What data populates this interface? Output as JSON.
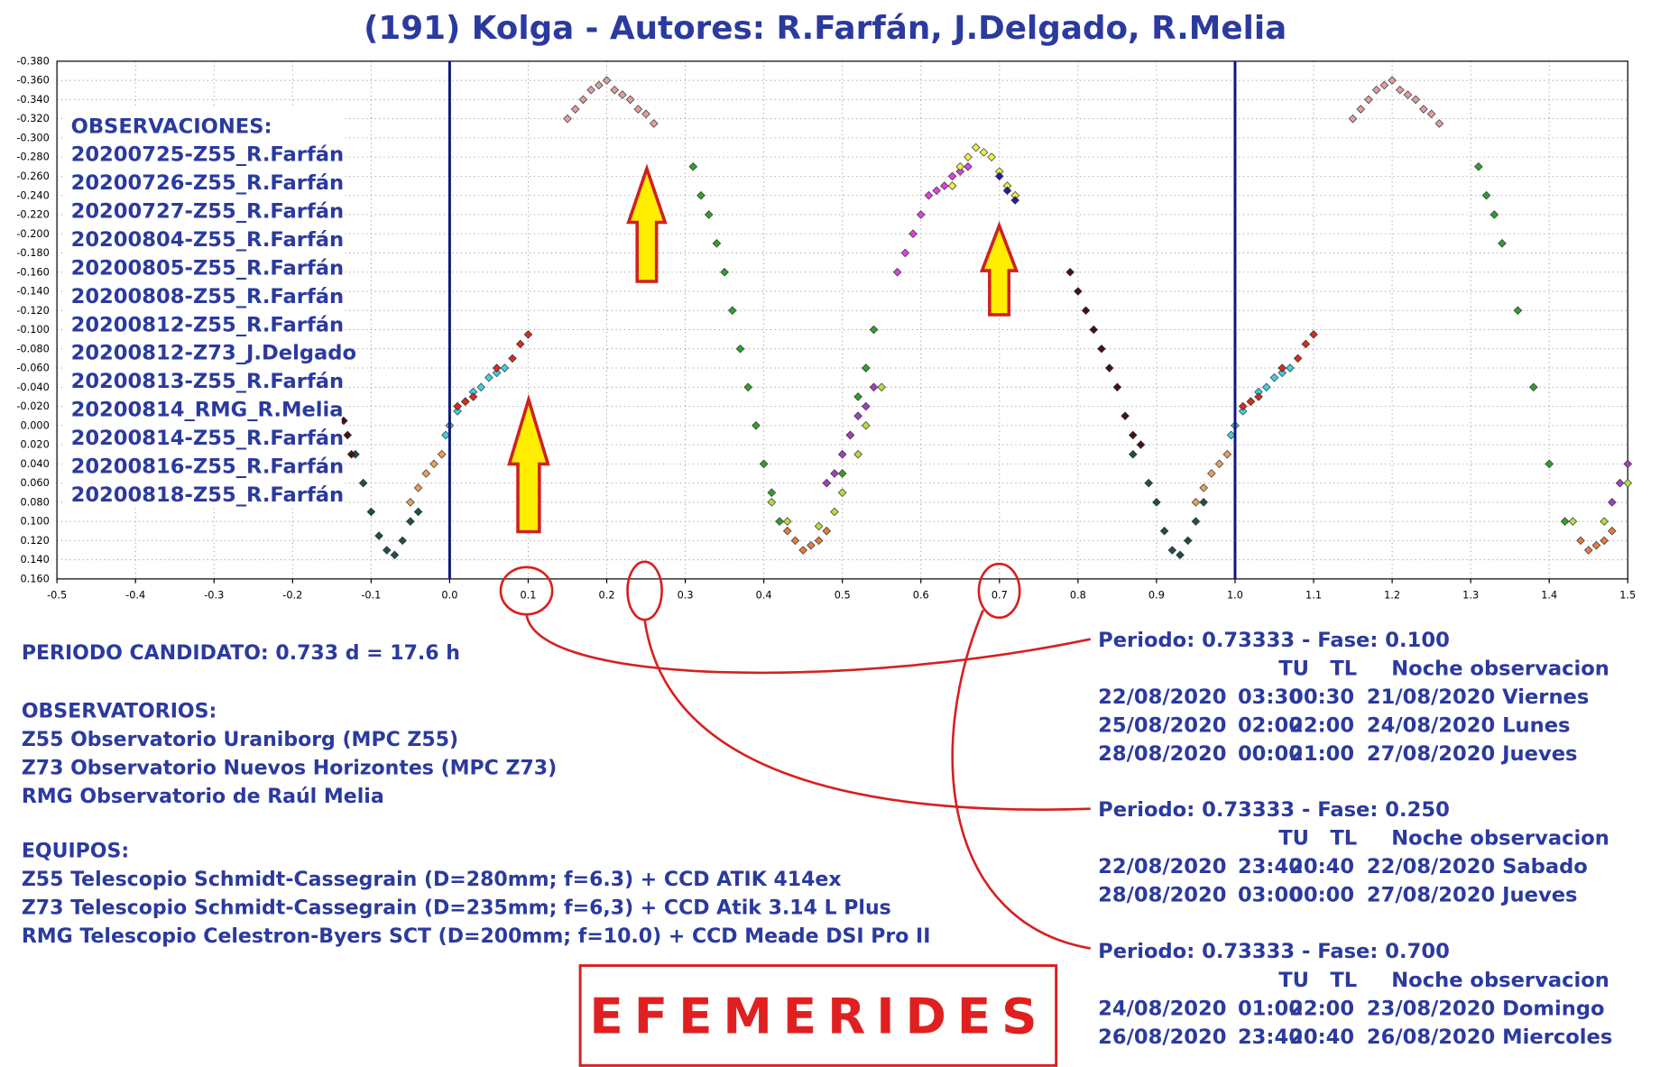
{
  "chart_data": {
    "type": "scatter",
    "title": "(191) Kolga - Autores: R.Farfán, J.Delgado, R.Melia",
    "legend_title": "OBSERVACIONES:",
    "legend_items": [
      "20200725-Z55_R.Farfán",
      "20200726-Z55_R.Farfán",
      "20200727-Z55_R.Farfán",
      "20200804-Z55_R.Farfán",
      "20200805-Z55_R.Farfán",
      "20200808-Z55_R.Farfán",
      "20200812-Z55_R.Farfán",
      "20200812-Z73_J.Delgado",
      "20200813-Z55_R.Farfán",
      "20200814_RMG_R.Melia",
      "20200814-Z55_R.Farfán",
      "20200816-Z55_R.Farfán",
      "20200818-Z55_R.Farfán"
    ],
    "xlim": [
      -0.5,
      1.5
    ],
    "ylim": [
      0.16,
      -0.38
    ],
    "xticks": [
      -0.5,
      -0.4,
      -0.3,
      -0.2,
      -0.1,
      {
        "value": 0,
        "label": "0.0"
      },
      0.1,
      0.2,
      0.3,
      0.4,
      0.5,
      0.6,
      0.7,
      0.8,
      0.9,
      {
        "value": 1,
        "label": "1.0"
      },
      1.1,
      1.2,
      1.3,
      1.4,
      1.5
    ],
    "yticks": [
      {
        "value": -0.38,
        "label": "-0.380"
      },
      {
        "value": -0.36,
        "label": "-0.360"
      },
      {
        "value": -0.34,
        "label": "-0.340"
      },
      {
        "value": -0.32,
        "label": "-0.320"
      },
      {
        "value": -0.3,
        "label": "-0.300"
      },
      {
        "value": -0.28,
        "label": "-0.280"
      },
      {
        "value": -0.26,
        "label": "-0.260"
      },
      {
        "value": -0.24,
        "label": "-0.240"
      },
      {
        "value": -0.22,
        "label": "-0.220"
      },
      {
        "value": -0.2,
        "label": "-0.200"
      },
      {
        "value": -0.18,
        "label": "-0.180"
      },
      {
        "value": -0.16,
        "label": "-0.160"
      },
      {
        "value": -0.14,
        "label": "-0.140"
      },
      {
        "value": -0.12,
        "label": "-0.120"
      },
      {
        "value": -0.1,
        "label": "-0.100"
      },
      {
        "value": -0.08,
        "label": "-0.080"
      },
      {
        "value": -0.06,
        "label": "-0.060"
      },
      {
        "value": -0.04,
        "label": "-0.040"
      },
      {
        "value": -0.02,
        "label": "-0.020"
      },
      {
        "value": 0,
        "label": "0.000"
      },
      {
        "value": 0.02,
        "label": "0.020"
      },
      {
        "value": 0.04,
        "label": "0.040"
      },
      {
        "value": 0.06,
        "label": "0.060"
      },
      {
        "value": 0.08,
        "label": "0.080"
      },
      {
        "value": 0.1,
        "label": "0.100"
      },
      {
        "value": 0.12,
        "label": "0.120"
      },
      {
        "value": 0.14,
        "label": "0.140"
      },
      {
        "value": 0.16,
        "label": "0.160"
      }
    ],
    "grid": true,
    "reference_lines_x": [
      0,
      1
    ],
    "reference_line_color": "#0d1a7a",
    "series": [
      {
        "color": "#1f4f4f",
        "x": [
          -0.12,
          -0.11,
          -0.1,
          -0.09,
          -0.08,
          -0.07,
          -0.06,
          -0.05,
          -0.04,
          0.87,
          0.89,
          0.9,
          0.91,
          0.92,
          0.93,
          0.94,
          0.95,
          0.96
        ],
        "values": [
          0.03,
          0.06,
          0.09,
          0.115,
          0.13,
          0.135,
          0.12,
          0.1,
          0.09,
          0.03,
          0.06,
          0.08,
          0.11,
          0.13,
          0.135,
          0.12,
          0.1,
          0.08
        ]
      },
      {
        "color": "#4a1010",
        "x": [
          -0.135,
          -0.13,
          -0.125,
          0.79,
          0.8,
          0.81,
          0.82,
          0.83,
          0.84,
          0.85,
          0.86,
          0.87,
          0.88
        ],
        "values": [
          -0.005,
          0.01,
          0.03,
          -0.16,
          -0.14,
          -0.12,
          -0.1,
          -0.08,
          -0.06,
          -0.04,
          -0.01,
          0.01,
          0.02
        ]
      },
      {
        "color": "#e8a060",
        "x": [
          -0.05,
          -0.04,
          -0.03,
          -0.02,
          -0.01,
          0.95,
          0.96,
          0.97,
          0.98,
          0.99
        ],
        "values": [
          0.08,
          0.065,
          0.05,
          0.04,
          0.03,
          0.08,
          0.065,
          0.05,
          0.04,
          0.03
        ]
      },
      {
        "color": "#40d0e0",
        "x": [
          -0.005,
          0,
          0.01,
          0.02,
          0.03,
          0.04,
          0.05,
          0.06,
          0.07,
          0.995,
          1,
          1.01,
          1.02,
          1.03,
          1.04,
          1.05,
          1.06,
          1.07
        ],
        "values": [
          0.01,
          0,
          -0.015,
          -0.025,
          -0.035,
          -0.04,
          -0.05,
          -0.055,
          -0.06,
          0.01,
          0,
          -0.015,
          -0.025,
          -0.035,
          -0.04,
          -0.05,
          -0.055,
          -0.06
        ]
      },
      {
        "color": "#d03020",
        "x": [
          0.01,
          0.02,
          0.03,
          0.06,
          0.08,
          0.09,
          0.1,
          1.01,
          1.02,
          1.03,
          1.06,
          1.08,
          1.09,
          1.1
        ],
        "values": [
          -0.02,
          -0.025,
          -0.03,
          -0.06,
          -0.07,
          -0.085,
          -0.095,
          -0.02,
          -0.025,
          -0.03,
          -0.06,
          -0.07,
          -0.085,
          -0.095
        ]
      },
      {
        "color": "#e0a0a0",
        "x": [
          0.15,
          0.16,
          0.17,
          0.18,
          0.19,
          0.2,
          0.21,
          0.22,
          0.23,
          0.24,
          0.25,
          0.26,
          1.15,
          1.16,
          1.17,
          1.18,
          1.19,
          1.2,
          1.21,
          1.22,
          1.23,
          1.24,
          1.25,
          1.26
        ],
        "values": [
          -0.32,
          -0.33,
          -0.34,
          -0.35,
          -0.355,
          -0.36,
          -0.35,
          -0.345,
          -0.34,
          -0.33,
          -0.325,
          -0.315,
          -0.32,
          -0.33,
          -0.34,
          -0.35,
          -0.355,
          -0.36,
          -0.35,
          -0.345,
          -0.34,
          -0.33,
          -0.325,
          -0.315
        ]
      },
      {
        "color": "#30a030",
        "x": [
          0.31,
          0.32,
          0.33,
          0.34,
          0.35,
          0.36,
          0.37,
          0.38,
          0.39,
          0.4,
          0.41,
          0.42,
          0.5,
          0.51,
          0.52,
          0.53,
          0.54,
          1.31,
          1.32,
          1.33,
          1.34,
          1.36,
          1.38,
          1.4,
          1.42
        ],
        "values": [
          -0.27,
          -0.24,
          -0.22,
          -0.19,
          -0.16,
          -0.12,
          -0.08,
          -0.04,
          0,
          0.04,
          0.07,
          0.1,
          0.05,
          0.01,
          -0.03,
          -0.06,
          -0.1,
          -0.27,
          -0.24,
          -0.22,
          -0.19,
          -0.12,
          -0.04,
          0.04,
          0.1
        ]
      },
      {
        "color": "#e08040",
        "x": [
          0.43,
          0.44,
          0.45,
          0.46,
          0.47,
          0.48,
          1.44,
          1.45,
          1.46,
          1.47,
          1.48
        ],
        "values": [
          0.11,
          0.12,
          0.13,
          0.125,
          0.12,
          0.11,
          0.12,
          0.13,
          0.125,
          0.12,
          0.11
        ]
      },
      {
        "color": "#b0e040",
        "x": [
          0.41,
          0.43,
          0.47,
          0.49,
          0.5,
          0.52,
          0.53,
          0.55,
          1.43,
          1.47,
          1.5
        ],
        "values": [
          0.08,
          0.1,
          0.105,
          0.09,
          0.07,
          0.03,
          0,
          -0.04,
          0.1,
          0.1,
          0.06
        ]
      },
      {
        "color": "#a040c0",
        "x": [
          0.48,
          0.49,
          0.5,
          0.51,
          0.52,
          0.53,
          0.54,
          1.48,
          1.49,
          1.5
        ],
        "values": [
          0.06,
          0.05,
          0.03,
          0.01,
          -0.01,
          -0.02,
          -0.04,
          0.08,
          0.06,
          0.04
        ]
      },
      {
        "color": "#e040e0",
        "x": [
          0.57,
          0.58,
          0.59,
          0.6,
          0.61,
          0.62,
          0.63,
          0.64,
          0.65,
          0.66
        ],
        "values": [
          -0.16,
          -0.18,
          -0.2,
          -0.22,
          -0.24,
          -0.245,
          -0.25,
          -0.26,
          -0.265,
          -0.27
        ]
      },
      {
        "color": "#f0f040",
        "x": [
          0.64,
          0.65,
          0.66,
          0.67,
          0.68,
          0.69,
          0.7,
          0.71,
          0.72
        ],
        "values": [
          -0.25,
          -0.27,
          -0.28,
          -0.29,
          -0.285,
          -0.28,
          -0.265,
          -0.25,
          -0.24
        ]
      },
      {
        "color": "#2020a0",
        "x": [
          0.7,
          0.71,
          0.72
        ],
        "values": [
          -0.26,
          -0.245,
          -0.235
        ]
      }
    ]
  },
  "notes": {
    "period": "PERIODO CANDIDATO: 0.733 d = 17.6 h",
    "observatories": {
      "title": "OBSERVATORIOS:",
      "lines": [
        "Z55 Observatorio Uraniborg (MPC Z55)",
        "Z73 Observatorio Nuevos Horizontes (MPC Z73)",
        "RMG Observatorio de Raúl Melia"
      ]
    },
    "equipment": {
      "title": "EQUIPOS:",
      "lines": [
        "Z55 Telescopio Schmidt-Cassegrain (D=280mm; f=6.3) + CCD ATIK 414ex",
        "Z73 Telescopio Schmidt-Cassegrain (D=235mm; f=6,3) + CCD Atik 3.14 L Plus",
        "RMG Telescopio Celestron-Byers SCT (D=200mm; f=10.0) + CCD Meade DSI Pro II"
      ]
    }
  },
  "ephemerides": {
    "label": "EFEMERIDES",
    "blocks": [
      {
        "title": "Periodo: 0.73333 - Fase: 0.100",
        "header": [
          "TU",
          "TL",
          "Noche observacion"
        ],
        "rows": [
          [
            "22/08/2020",
            "03:30",
            "00:30",
            "21/08/2020 Viernes"
          ],
          [
            "25/08/2020",
            "02:00",
            "22:00",
            "24/08/2020 Lunes"
          ],
          [
            "28/08/2020",
            "00:00",
            "21:00",
            "27/08/2020 Jueves"
          ]
        ]
      },
      {
        "title": "Periodo: 0.73333 - Fase: 0.250",
        "header": [
          "TU",
          "TL",
          "Noche observacion"
        ],
        "rows": [
          [
            "22/08/2020",
            "23:40",
            "20:40",
            "22/08/2020 Sabado"
          ],
          [
            "28/08/2020",
            "03:00",
            "00:00",
            "27/08/2020 Jueves"
          ]
        ]
      },
      {
        "title": "Periodo: 0.73333 - Fase: 0.700",
        "header": [
          "TU",
          "TL",
          "Noche observacion"
        ],
        "rows": [
          [
            "24/08/2020",
            "01:00",
            "22:00",
            "23/08/2020 Domingo"
          ],
          [
            "26/08/2020",
            "23:40",
            "20:40",
            "26/08/2020 Miercoles"
          ]
        ]
      }
    ]
  }
}
